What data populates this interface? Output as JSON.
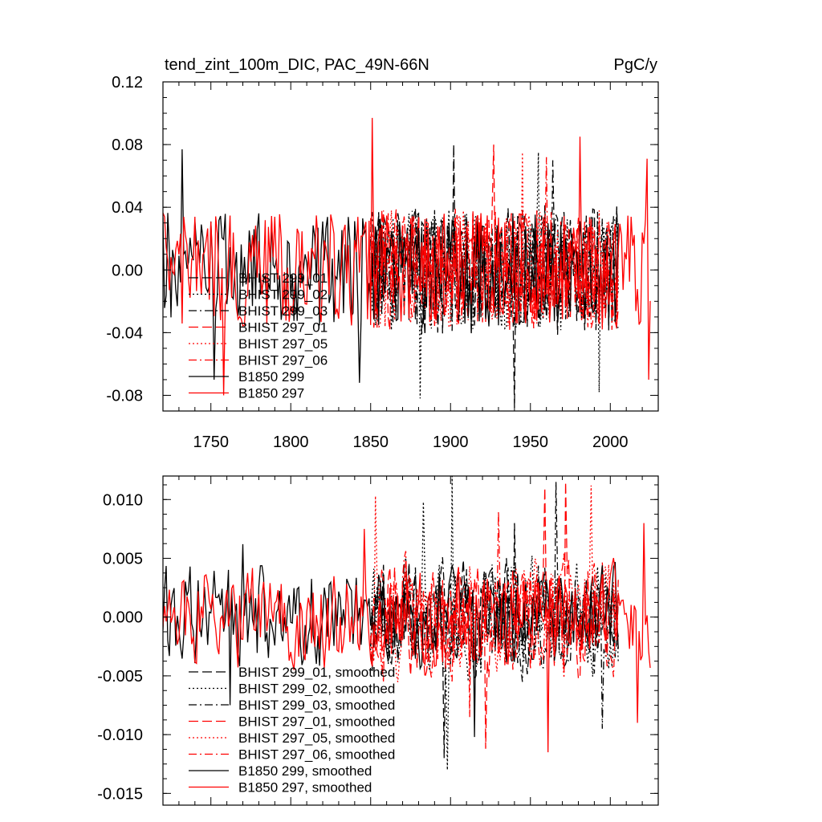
{
  "chart_data": [
    {
      "type": "line",
      "title": "tend_zint_100m_DIC, PAC_49N-66N",
      "units": "PgC/y",
      "xlim": [
        1720,
        2030
      ],
      "ylim": [
        -0.09,
        0.12
      ],
      "x_ticks": [
        1750,
        1800,
        1850,
        1900,
        1950,
        2000
      ],
      "y_ticks": [
        0.12,
        0.08,
        0.04,
        0.0,
        -0.04,
        -0.08
      ],
      "y_tick_labels": [
        "0.12",
        "0.08",
        "0.04",
        "0.00",
        "-0.04",
        "-0.08"
      ],
      "legend_position": "lower-left",
      "series": [
        {
          "name": "BHIST 299_01",
          "color": "#000000",
          "dash": "long-dash",
          "x_range": [
            1850,
            2005
          ],
          "amplitude": 0.032,
          "peaks": [
            [
              1902,
              0.08
            ],
            [
              1940,
              -0.088
            ]
          ]
        },
        {
          "name": "BHIST 299_02",
          "color": "#000000",
          "dash": "dot",
          "x_range": [
            1850,
            2005
          ],
          "amplitude": 0.03,
          "peaks": [
            [
              1881,
              -0.082
            ],
            [
              1955,
              0.075
            ],
            [
              1993,
              -0.078
            ]
          ]
        },
        {
          "name": "BHIST 299_03",
          "color": "#000000",
          "dash": "dash-dot",
          "x_range": [
            1850,
            2005
          ],
          "amplitude": 0.03,
          "peaks": [
            [
              1964,
              0.07
            ]
          ]
        },
        {
          "name": "BHIST 297_01",
          "color": "#ff0000",
          "dash": "long-dash",
          "x_range": [
            1850,
            2005
          ],
          "amplitude": 0.03,
          "peaks": [
            [
              1927,
              0.08
            ]
          ]
        },
        {
          "name": "BHIST 297_05",
          "color": "#ff0000",
          "dash": "dot",
          "x_range": [
            1850,
            2005
          ],
          "amplitude": 0.03,
          "peaks": [
            [
              1945,
              0.075
            ]
          ]
        },
        {
          "name": "BHIST 297_06",
          "color": "#ff0000",
          "dash": "dash-dot",
          "x_range": [
            1850,
            2005
          ],
          "amplitude": 0.03,
          "peaks": [
            [
              1960,
              0.072
            ]
          ]
        },
        {
          "name": "B1850 299",
          "color": "#000000",
          "dash": "solid",
          "x_range": [
            1720,
            2005
          ],
          "amplitude": 0.028,
          "peaks": [
            [
              1732,
              0.077
            ],
            [
              1752,
              -0.07
            ],
            [
              1843,
              -0.072
            ]
          ]
        },
        {
          "name": "B1850 297",
          "color": "#ff0000",
          "dash": "solid",
          "x_range": [
            1720,
            2025
          ],
          "amplitude": 0.028,
          "peaks": [
            [
              1851,
              0.097
            ],
            [
              1981,
              0.085
            ],
            [
              1758,
              -0.08
            ],
            [
              2024,
              -0.07
            ],
            [
              2023,
              0.071
            ]
          ]
        }
      ]
    },
    {
      "type": "line",
      "xlim": [
        1720,
        2030
      ],
      "ylim": [
        -0.016,
        0.012
      ],
      "x_ticks": [
        1750,
        1800,
        1850,
        1900,
        1950,
        2000
      ],
      "y_ticks": [
        0.01,
        0.005,
        0.0,
        -0.005,
        -0.01,
        -0.015
      ],
      "y_tick_labels": [
        "0.010",
        "0.005",
        "0.000",
        "-0.005",
        "-0.010",
        "-0.015"
      ],
      "legend_position": "lower-left",
      "series": [
        {
          "name": "BHIST 299_01, smoothed",
          "color": "#000000",
          "dash": "long-dash",
          "x_range": [
            1850,
            2005
          ],
          "amplitude": 0.004,
          "peaks": [
            [
              1940,
              0.008
            ],
            [
              1896,
              -0.012
            ]
          ]
        },
        {
          "name": "BHIST 299_02, smoothed",
          "color": "#000000",
          "dash": "dot",
          "x_range": [
            1850,
            2005
          ],
          "amplitude": 0.004,
          "peaks": [
            [
              1901,
              0.012
            ],
            [
              1883,
              0.0098
            ],
            [
              1898,
              -0.013
            ]
          ]
        },
        {
          "name": "BHIST 299_03, smoothed",
          "color": "#000000",
          "dash": "dash-dot",
          "x_range": [
            1850,
            2005
          ],
          "amplitude": 0.004,
          "peaks": [
            [
              1966,
              0.0115
            ],
            [
              1995,
              -0.0095
            ]
          ]
        },
        {
          "name": "BHIST 297_01, smoothed",
          "color": "#ff0000",
          "dash": "long-dash",
          "x_range": [
            1850,
            2005
          ],
          "amplitude": 0.004,
          "peaks": [
            [
              1972,
              0.0115
            ],
            [
              1959,
              0.011
            ],
            [
              1922,
              -0.0112
            ]
          ]
        },
        {
          "name": "BHIST 297_05, smoothed",
          "color": "#ff0000",
          "dash": "dot",
          "x_range": [
            1850,
            2005
          ],
          "amplitude": 0.004,
          "peaks": [
            [
              1988,
              0.0112
            ],
            [
              1853,
              0.0103
            ]
          ]
        },
        {
          "name": "BHIST 297_06, smoothed",
          "color": "#ff0000",
          "dash": "dash-dot",
          "x_range": [
            1850,
            2005
          ],
          "amplitude": 0.004,
          "peaks": [
            [
              1930,
              0.009
            ],
            [
              1912,
              -0.0085
            ]
          ]
        },
        {
          "name": "B1850 299, smoothed",
          "color": "#000000",
          "dash": "solid",
          "x_range": [
            1720,
            2005
          ],
          "amplitude": 0.0035,
          "peaks": [
            [
              1770,
              0.0062
            ],
            [
              1762,
              -0.0075
            ],
            [
              1915,
              -0.0102
            ]
          ]
        },
        {
          "name": "B1850 297, smoothed",
          "color": "#ff0000",
          "dash": "solid",
          "x_range": [
            1720,
            2025
          ],
          "amplitude": 0.0035,
          "peaks": [
            [
              1846,
              0.0075
            ],
            [
              2021,
              0.008
            ],
            [
              1961,
              -0.0115
            ],
            [
              2017,
              -0.009
            ]
          ]
        }
      ]
    }
  ]
}
